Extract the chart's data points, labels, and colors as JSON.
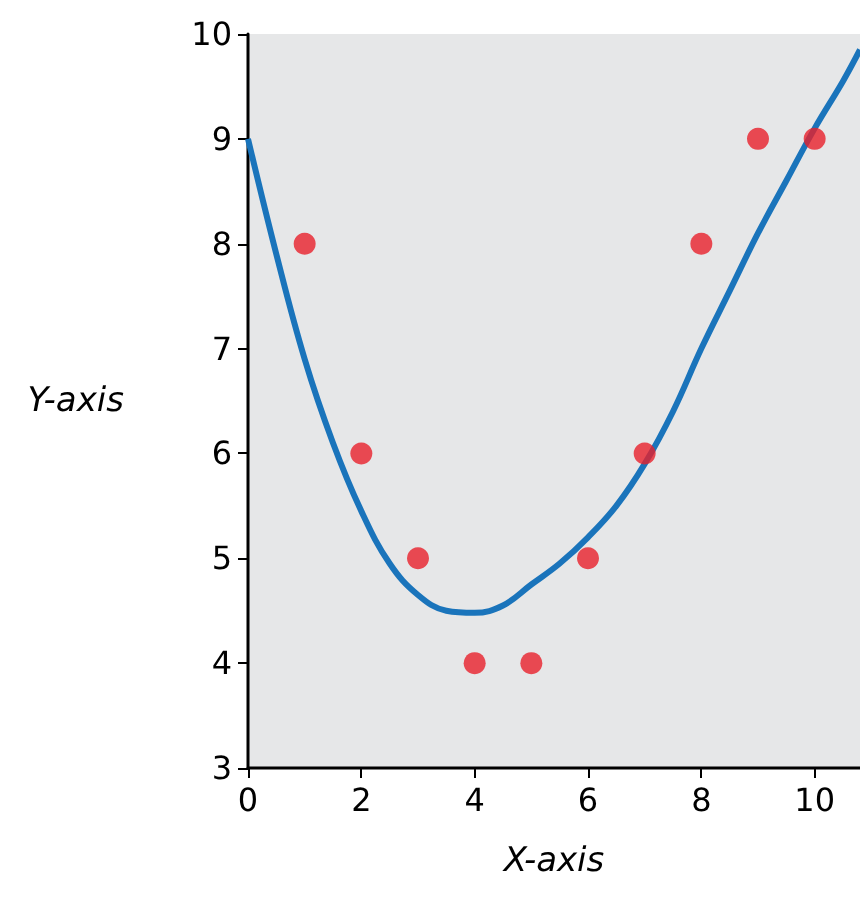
{
  "chart_data": {
    "type": "scatter",
    "xlabel": "X-axis",
    "ylabel": "Y-axis",
    "xlim": [
      0,
      10.8
    ],
    "ylim": [
      3,
      10
    ],
    "xticks": [
      0,
      2,
      4,
      6,
      8,
      10
    ],
    "yticks": [
      3,
      4,
      5,
      6,
      7,
      8,
      9,
      10
    ],
    "grid": false,
    "marker": "circle",
    "series": [
      {
        "color": "#e8202a",
        "x": [
          1,
          2,
          3,
          4,
          5,
          6,
          7,
          8,
          9,
          10
        ],
        "values": [
          8,
          6,
          5,
          4,
          4,
          5,
          6,
          8,
          9,
          9
        ]
      },
      {
        "type": "line",
        "color": "#1a74bb",
        "marker": "none",
        "x": [
          0,
          0.5,
          1,
          1.5,
          2,
          2.5,
          3,
          3.5,
          4,
          4.5,
          5,
          5.5,
          6,
          6.5,
          7,
          7.5,
          8,
          8.5,
          9,
          9.5,
          10,
          10.5,
          10.8
        ],
        "values": [
          9,
          7.9,
          6.9,
          6.1,
          5.45,
          4.95,
          4.65,
          4.5,
          4.48,
          4.55,
          4.75,
          4.95,
          5.2,
          5.5,
          5.9,
          6.4,
          7,
          7.55,
          8.1,
          8.6,
          9.1,
          9.55,
          9.85
        ]
      }
    ]
  }
}
